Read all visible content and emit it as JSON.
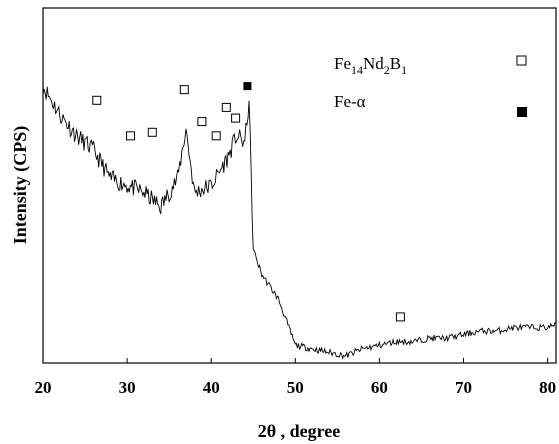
{
  "chart_data": {
    "type": "line",
    "xlabel": "2θ , degree",
    "ylabel": "Intensity (CPS)",
    "xlim": [
      20,
      81
    ],
    "xticks": [
      "20",
      "30",
      "40",
      "50",
      "60",
      "70",
      "80"
    ],
    "legend_position": "top-right",
    "legend": [
      {
        "label_parts": [
          "Fe",
          "14",
          "Nd",
          "2",
          "B",
          "1"
        ],
        "marker": "open-square"
      },
      {
        "label_parts": [
          "Fe-α"
        ],
        "marker": "filled-square"
      }
    ],
    "series": [
      {
        "x": [
          20,
          22,
          24,
          26,
          28,
          30,
          32,
          34,
          36,
          37,
          38,
          40,
          42,
          43,
          44,
          44.5,
          45,
          46,
          48,
          50,
          52,
          54,
          56,
          58,
          60,
          62,
          64,
          66,
          68,
          70,
          72,
          74,
          76,
          78,
          80,
          81
        ],
        "y": [
          0.78,
          0.7,
          0.64,
          0.6,
          0.52,
          0.5,
          0.48,
          0.44,
          0.52,
          0.66,
          0.48,
          0.5,
          0.58,
          0.64,
          0.62,
          0.74,
          0.32,
          0.25,
          0.18,
          0.05,
          0.04,
          0.03,
          0.02,
          0.04,
          0.05,
          0.06,
          0.06,
          0.07,
          0.07,
          0.08,
          0.09,
          0.09,
          0.1,
          0.1,
          0.1,
          0.11
        ]
      }
    ],
    "annotations": [
      {
        "x": 26.4,
        "y": 0.74,
        "marker": "open-square"
      },
      {
        "x": 30.4,
        "y": 0.64,
        "marker": "open-square"
      },
      {
        "x": 33.0,
        "y": 0.65,
        "marker": "open-square"
      },
      {
        "x": 36.8,
        "y": 0.77,
        "marker": "open-square"
      },
      {
        "x": 38.9,
        "y": 0.68,
        "marker": "open-square"
      },
      {
        "x": 40.6,
        "y": 0.64,
        "marker": "open-square"
      },
      {
        "x": 41.8,
        "y": 0.72,
        "marker": "open-square"
      },
      {
        "x": 42.9,
        "y": 0.69,
        "marker": "open-square"
      },
      {
        "x": 44.3,
        "y": 0.78,
        "marker": "filled-square"
      },
      {
        "x": 62.5,
        "y": 0.13,
        "marker": "open-square"
      }
    ]
  }
}
